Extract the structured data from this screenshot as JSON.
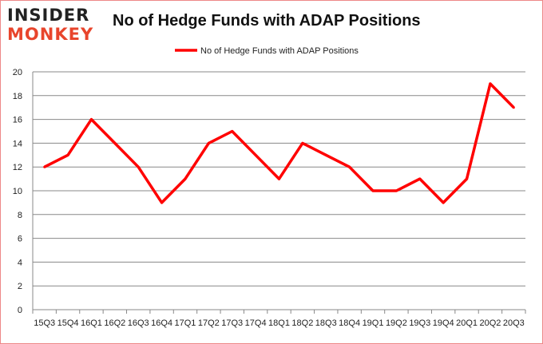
{
  "logo": {
    "line1": "INSIDER",
    "line2": "MONKEY"
  },
  "chart_data": {
    "type": "line",
    "title": "No of Hedge Funds with ADAP Positions",
    "categories": [
      "15Q3",
      "15Q4",
      "16Q1",
      "16Q2",
      "16Q3",
      "16Q4",
      "17Q1",
      "17Q2",
      "17Q3",
      "17Q4",
      "18Q1",
      "18Q2",
      "18Q3",
      "18Q4",
      "19Q1",
      "19Q2",
      "19Q3",
      "19Q4",
      "20Q1",
      "20Q2",
      "20Q3"
    ],
    "series": [
      {
        "name": "No of Hedge Funds with ADAP Positions",
        "color": "#ff0000",
        "values": [
          12,
          13,
          16,
          14,
          12,
          9,
          11,
          14,
          15,
          13,
          11,
          14,
          13,
          12,
          10,
          10,
          11,
          9,
          11,
          19,
          17
        ]
      }
    ],
    "ylim": [
      0,
      20
    ],
    "yticks": [
      0,
      2,
      4,
      6,
      8,
      10,
      12,
      14,
      16,
      18,
      20
    ],
    "grid": true,
    "legend": "top-center"
  }
}
